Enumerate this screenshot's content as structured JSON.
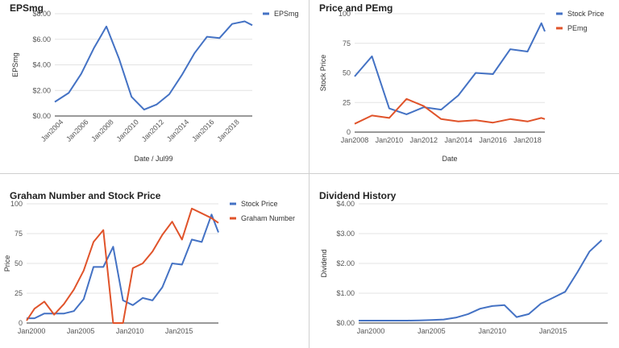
{
  "colors": {
    "blue": "#4472c4",
    "red": "#e0532a",
    "grid": "#e3e3e3",
    "axis": "#333333"
  },
  "chart_data": [
    {
      "type": "line",
      "title": "EPSmg",
      "xlabel": "Date / Jul99",
      "ylabel": "EPSmg",
      "xlim": [
        2003.3,
        2019.0
      ],
      "ylim": [
        0,
        8
      ],
      "yticks": [
        0,
        2,
        4,
        6,
        8
      ],
      "ytick_labels": [
        "$0.00",
        "$2.00",
        "$4.00",
        "$6.00",
        "$8.00"
      ],
      "xticks": [
        2004,
        2006,
        2008,
        2010,
        2012,
        2014,
        2016,
        2018
      ],
      "xtick_labels": [
        "Jan2004",
        "Jan2006",
        "Jan2008",
        "Jan2010",
        "Jan2012",
        "Jan2014",
        "Jan2016",
        "Jan2018"
      ],
      "legend_position": "top-right",
      "series": [
        {
          "name": "EPSmg",
          "color": "#4472c4",
          "x": [
            2003.3,
            2004.4,
            2005.4,
            2006.4,
            2007.4,
            2008.4,
            2009.4,
            2010.4,
            2011.4,
            2012.4,
            2013.4,
            2014.4,
            2015.4,
            2016.4,
            2017.4,
            2018.4,
            2019.0
          ],
          "y": [
            1.1,
            1.8,
            3.3,
            5.3,
            7.0,
            4.5,
            1.5,
            0.5,
            0.9,
            1.7,
            3.2,
            4.9,
            6.2,
            6.1,
            7.2,
            7.4,
            7.1
          ]
        }
      ]
    },
    {
      "type": "line",
      "title": "Price and PEmg",
      "xlabel": "Date",
      "ylabel": "Stock Price",
      "xlim": [
        2008.0,
        2019.0
      ],
      "ylim": [
        0,
        100
      ],
      "yticks": [
        0,
        25,
        50,
        75,
        100
      ],
      "ytick_labels": [
        "0",
        "25",
        "50",
        "75",
        "100"
      ],
      "xticks": [
        2008,
        2010,
        2012,
        2014,
        2016,
        2018
      ],
      "xtick_labels": [
        "Jan2008",
        "Jan2010",
        "Jan2012",
        "Jan2014",
        "Jan2016",
        "Jan2018"
      ],
      "legend_position": "top-right",
      "series": [
        {
          "name": "Stock Price",
          "color": "#4472c4",
          "x": [
            2008.0,
            2009.0,
            2010.0,
            2011.0,
            2012.0,
            2013.0,
            2014.0,
            2015.0,
            2016.0,
            2017.0,
            2018.0,
            2018.8,
            2019.0
          ],
          "y": [
            47,
            64,
            20,
            15,
            21,
            19,
            31,
            50,
            49,
            70,
            68,
            92,
            85
          ]
        },
        {
          "name": "PEmg",
          "color": "#e0532a",
          "x": [
            2008.0,
            2009.0,
            2010.0,
            2011.0,
            2012.0,
            2013.0,
            2014.0,
            2015.0,
            2016.0,
            2017.0,
            2018.0,
            2018.8,
            2019.0
          ],
          "y": [
            7,
            14,
            12,
            28,
            22,
            11,
            9,
            10,
            8,
            11,
            9,
            12,
            11
          ]
        }
      ]
    },
    {
      "type": "line",
      "title": "Graham Number and Stock Price",
      "xlabel": "",
      "ylabel": "Price",
      "xlim": [
        1999.5,
        2019.0
      ],
      "ylim": [
        0,
        100
      ],
      "yticks": [
        0,
        25,
        50,
        75,
        100
      ],
      "ytick_labels": [
        "0",
        "25",
        "50",
        "75",
        "100"
      ],
      "xticks": [
        2000,
        2005,
        2010,
        2015
      ],
      "xtick_labels": [
        "Jan2000",
        "Jan2005",
        "Jan2010",
        "Jan2015"
      ],
      "legend_position": "top-right",
      "series": [
        {
          "name": "Stock Price",
          "color": "#4472c4",
          "x": [
            1999.5,
            2000.3,
            2001.3,
            2002.3,
            2003.3,
            2004.3,
            2005.3,
            2006.3,
            2007.3,
            2008.3,
            2009.3,
            2010.3,
            2011.3,
            2012.3,
            2013.3,
            2014.3,
            2015.3,
            2016.3,
            2017.3,
            2018.3,
            2019.0
          ],
          "y": [
            4,
            4,
            8,
            8,
            8,
            10,
            20,
            47,
            47,
            64,
            19,
            15,
            21,
            19,
            30,
            50,
            49,
            70,
            68,
            91,
            76
          ]
        },
        {
          "name": "Graham Number",
          "color": "#e0532a",
          "x": [
            1999.5,
            2000.3,
            2001.3,
            2002.3,
            2003.3,
            2004.3,
            2005.3,
            2006.3,
            2007.3,
            2008.3,
            2009.3,
            2010.3,
            2011.3,
            2012.3,
            2013.3,
            2014.3,
            2015.3,
            2016.3,
            2017.3,
            2018.3,
            2019.0
          ],
          "y": [
            2,
            12,
            18,
            7,
            16,
            28,
            44,
            68,
            78,
            0,
            0,
            46,
            50,
            60,
            74,
            85,
            70,
            96,
            92,
            88,
            84
          ]
        }
      ]
    },
    {
      "type": "line",
      "title": "Dividend History",
      "xlabel": "",
      "ylabel": "Dividend",
      "xlim": [
        1999.0,
        2019.5
      ],
      "ylim": [
        0,
        4
      ],
      "yticks": [
        0,
        1,
        2,
        3,
        4
      ],
      "ytick_labels": [
        "$0.00",
        "$1.00",
        "$2.00",
        "$3.00",
        "$4.00"
      ],
      "xticks": [
        2000,
        2005,
        2010,
        2015
      ],
      "xtick_labels": [
        "Jan2000",
        "Jan2005",
        "Jan2010",
        "Jan2015"
      ],
      "series": [
        {
          "name": "Dividend",
          "color": "#4472c4",
          "x": [
            1999.0,
            2000.0,
            2001.0,
            2002.0,
            2003.0,
            2004.0,
            2005.0,
            2006.0,
            2007.0,
            2008.0,
            2009.0,
            2010.0,
            2011.0,
            2012.0,
            2013.0,
            2014.0,
            2015.0,
            2016.0,
            2017.0,
            2018.0,
            2019.0
          ],
          "y": [
            0.08,
            0.08,
            0.08,
            0.08,
            0.08,
            0.09,
            0.1,
            0.12,
            0.18,
            0.3,
            0.48,
            0.57,
            0.6,
            0.2,
            0.3,
            0.65,
            0.85,
            1.05,
            1.7,
            2.4,
            2.78
          ]
        }
      ]
    }
  ]
}
